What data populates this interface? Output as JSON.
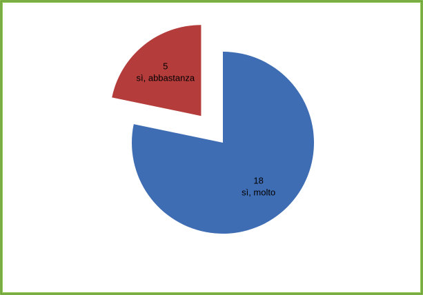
{
  "chart_data": {
    "type": "pie",
    "title": "",
    "slices": [
      {
        "label": "sì, molto",
        "value": 18,
        "color": "#3f6db3"
      },
      {
        "label": "sì, abbastanza",
        "value": 5,
        "color": "#b43c3a"
      }
    ],
    "exploded": [
      "sì, abbastanza"
    ],
    "legend": false
  },
  "colors": {
    "frame_border": "#8cc152",
    "background": "#ffffff"
  }
}
